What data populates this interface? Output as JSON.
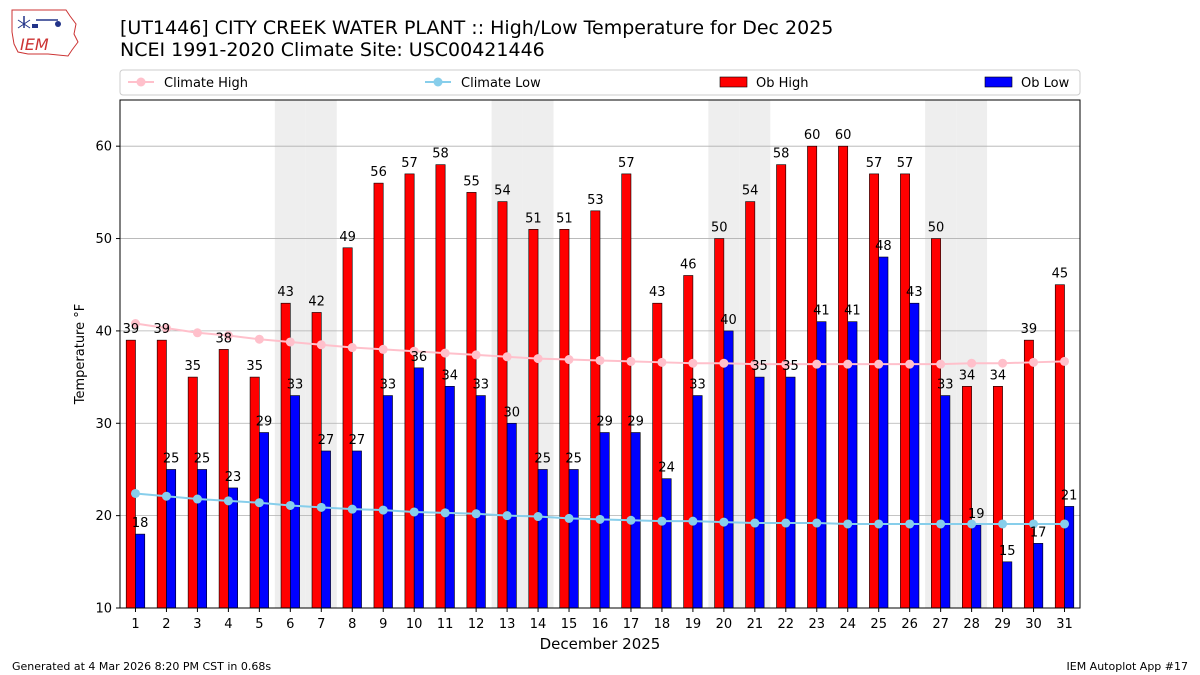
{
  "header": {
    "title_line1": "[UT1446] CITY CREEK WATER PLANT :: High/Low Temperature for Dec 2025",
    "title_line2": "NCEI 1991-2020 Climate Site: USC00421446"
  },
  "logo": {
    "text": "IEM"
  },
  "footer": {
    "generated": "Generated at 4 Mar 2026 8:20 PM CST in 0.68s",
    "app": "IEM Autoplot App #17"
  },
  "colors": {
    "ob_high": "#ff0000",
    "ob_low": "#0000ff",
    "climate_high": "#ffc0cb",
    "climate_low": "#87ceeb",
    "weekend_shade": "#eeeeee",
    "grid": "#b0b0b0"
  },
  "chart_data": {
    "type": "bar",
    "xlabel": "December 2025",
    "ylabel": "Temperature °F",
    "ylim": [
      10,
      65
    ],
    "yticks": [
      10,
      20,
      30,
      40,
      50,
      60
    ],
    "grid": true,
    "legend_position": "top",
    "categories": [
      "1",
      "2",
      "3",
      "4",
      "5",
      "6",
      "7",
      "8",
      "9",
      "10",
      "11",
      "12",
      "13",
      "14",
      "15",
      "16",
      "17",
      "18",
      "19",
      "20",
      "21",
      "22",
      "23",
      "24",
      "25",
      "26",
      "27",
      "28",
      "29",
      "30",
      "31"
    ],
    "shaded_weekend_days": [
      6,
      7,
      13,
      14,
      20,
      21,
      27,
      28
    ],
    "legend": [
      "Climate High",
      "Climate Low",
      "Ob High",
      "Ob Low"
    ],
    "series": [
      {
        "name": "Ob High",
        "kind": "bar",
        "values": [
          39,
          39,
          35,
          38,
          35,
          43,
          42,
          49,
          56,
          57,
          58,
          55,
          54,
          51,
          51,
          53,
          57,
          43,
          46,
          50,
          54,
          58,
          60,
          60,
          57,
          57,
          50,
          34,
          34,
          39,
          45
        ]
      },
      {
        "name": "Ob Low",
        "kind": "bar",
        "values": [
          18,
          25,
          25,
          23,
          29,
          33,
          27,
          27,
          33,
          36,
          34,
          33,
          30,
          25,
          25,
          29,
          29,
          24,
          33,
          40,
          35,
          35,
          41,
          41,
          48,
          43,
          33,
          19,
          15,
          17,
          21
        ]
      },
      {
        "name": "Climate High",
        "kind": "line",
        "values": [
          40.8,
          40.3,
          39.8,
          39.5,
          39.1,
          38.8,
          38.5,
          38.2,
          38.0,
          37.8,
          37.6,
          37.4,
          37.2,
          37.0,
          36.9,
          36.8,
          36.7,
          36.6,
          36.5,
          36.5,
          36.4,
          36.4,
          36.4,
          36.4,
          36.4,
          36.4,
          36.4,
          36.5,
          36.5,
          36.6,
          36.7
        ]
      },
      {
        "name": "Climate Low",
        "kind": "line",
        "values": [
          22.4,
          22.1,
          21.8,
          21.6,
          21.4,
          21.1,
          20.9,
          20.7,
          20.6,
          20.4,
          20.3,
          20.2,
          20.0,
          19.9,
          19.7,
          19.6,
          19.5,
          19.4,
          19.4,
          19.3,
          19.2,
          19.2,
          19.2,
          19.1,
          19.1,
          19.1,
          19.1,
          19.1,
          19.1,
          19.1,
          19.1
        ]
      }
    ]
  }
}
